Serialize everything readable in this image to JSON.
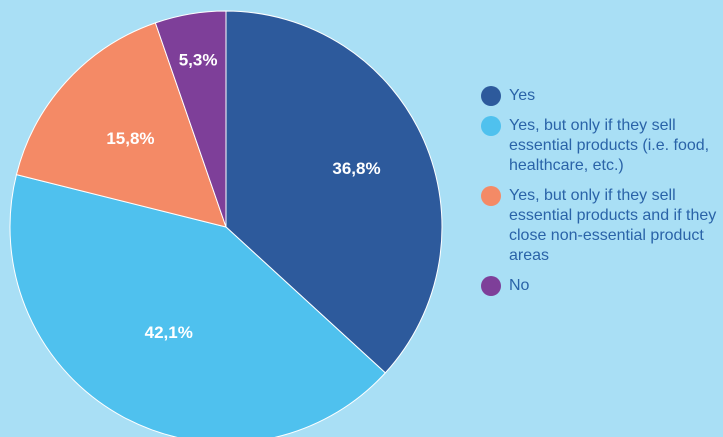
{
  "chart_data": {
    "type": "pie",
    "slices": [
      {
        "label": "Yes",
        "value": 36.8,
        "display": "36,8%",
        "color": "#2d5a9c"
      },
      {
        "label": "Yes, but only if they sell essential products (i.e. food, healthcare, etc.)",
        "value": 42.1,
        "display": "42,1%",
        "color": "#4fc1ee"
      },
      {
        "label": "Yes, but only if they sell essential products and if they close non-essential product areas",
        "value": 15.8,
        "display": "15,8%",
        "color": "#f48a66"
      },
      {
        "label": "No",
        "value": 5.3,
        "display": "5,3%",
        "color": "#7e3f99"
      }
    ],
    "legend_position": "right"
  },
  "legend": {
    "items": [
      {
        "label": "Yes",
        "color": "#2d5a9c"
      },
      {
        "label": "Yes, but only if they sell essential products (i.e. food, healthcare, etc.)",
        "color": "#4fc1ee"
      },
      {
        "label": "Yes, but only if they sell essential products and if they close non-essential product areas",
        "color": "#f48a66"
      },
      {
        "label": "No",
        "color": "#7e3f99"
      }
    ]
  }
}
